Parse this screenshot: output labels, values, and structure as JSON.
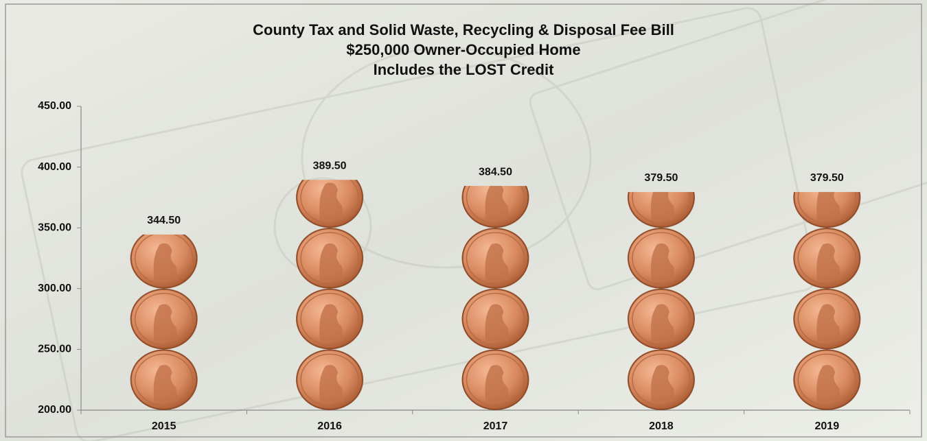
{
  "chart_data": {
    "type": "bar",
    "title": [
      "County Tax and Solid Waste, Recycling & Disposal Fee Bill",
      "$250,000 Owner-Occupied Home",
      "Includes the  LOST Credit"
    ],
    "categories": [
      "2015",
      "2016",
      "2017",
      "2018",
      "2019"
    ],
    "values": [
      344.5,
      389.5,
      384.5,
      379.5,
      379.5
    ],
    "value_labels": [
      "344.50",
      "389.50",
      "384.50",
      "379.50",
      "379.50"
    ],
    "color": "#c87850",
    "ylim": [
      200,
      450
    ],
    "yticks": [
      {
        "value": 200,
        "label": "200.00"
      },
      {
        "value": 250,
        "label": "250.00"
      },
      {
        "value": 300,
        "label": "300.00"
      },
      {
        "value": 350,
        "label": "350.00"
      },
      {
        "value": 400,
        "label": "400.00"
      },
      {
        "value": 450,
        "label": "450.00"
      }
    ],
    "grid": false
  }
}
